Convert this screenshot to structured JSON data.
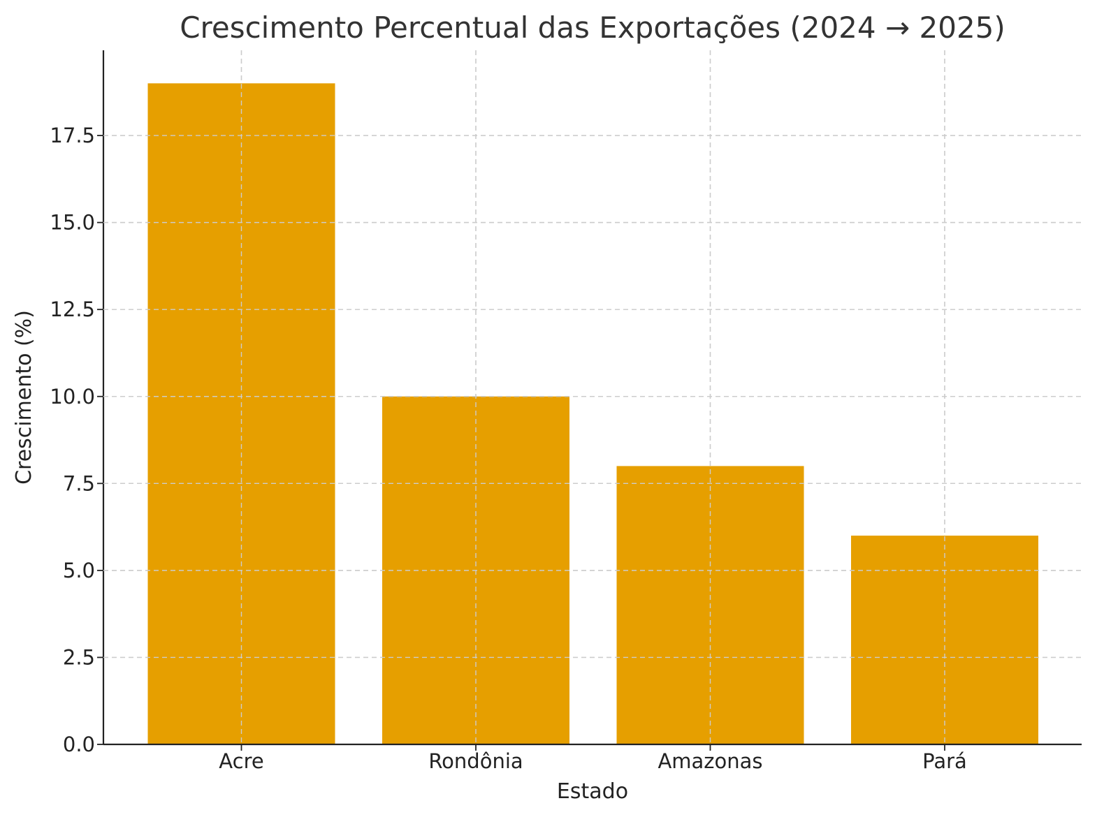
{
  "chart_data": {
    "type": "bar",
    "title": "Crescimento Percentual das Exportações (2024 → 2025)",
    "xlabel": "Estado",
    "ylabel": "Crescimento (%)",
    "categories": [
      "Acre",
      "Rondônia",
      "Amazonas",
      "Pará"
    ],
    "values": [
      19,
      10,
      8,
      6
    ],
    "ylim": [
      0,
      19.95
    ],
    "yticks": [
      0,
      2.5,
      5,
      7.5,
      10,
      12.5,
      15,
      17.5
    ],
    "ytick_labels": [
      "0.0",
      "2.5",
      "5.0",
      "7.5",
      "10.0",
      "12.5",
      "15.0",
      "17.5"
    ],
    "grid": true,
    "bar_color": "#E69F00"
  }
}
